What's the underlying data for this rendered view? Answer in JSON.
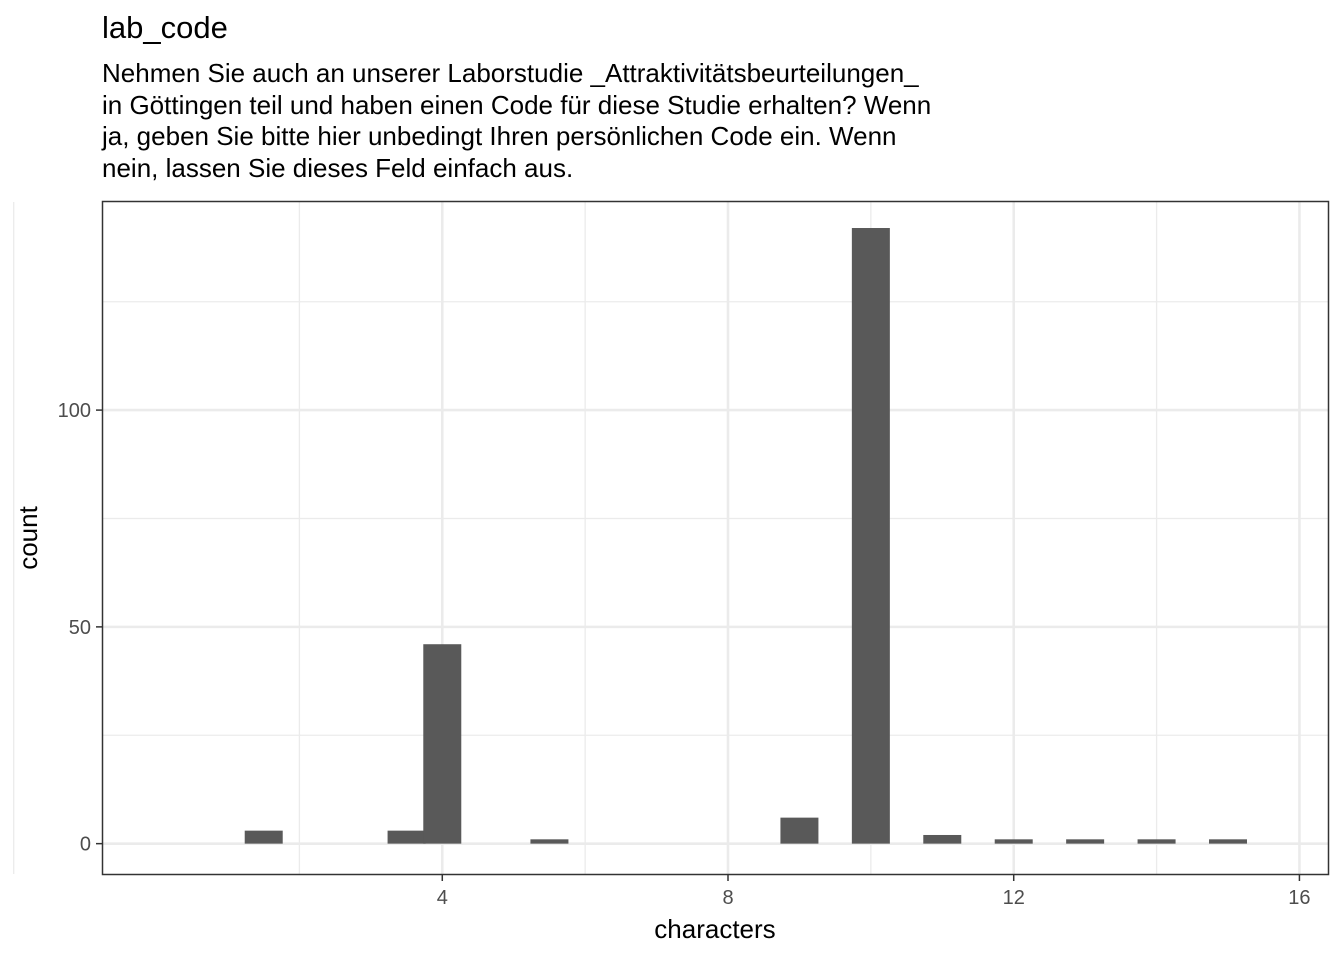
{
  "chart_data": {
    "type": "bar",
    "title": "lab_code",
    "subtitle_lines": [
      "Nehmen Sie auch an unserer Laborstudie _Attraktivitätsbeurteilungen_",
      "in Göttingen teil und haben einen Code für diese Studie erhalten? Wenn",
      "ja, geben Sie bitte hier unbedingt Ihren persönlichen Code ein. Wenn",
      "nein, lassen Sie dieses Feld einfach aus."
    ],
    "xlabel": "characters",
    "ylabel": "count",
    "x": [
      1.5,
      3.5,
      4,
      5.5,
      9,
      10,
      11,
      12,
      13,
      14,
      15
    ],
    "values": [
      3,
      3,
      46,
      1,
      6,
      142,
      2,
      1,
      1,
      1,
      1
    ],
    "xlim": [
      -0.75,
      16.4
    ],
    "ylim": [
      -7,
      148
    ],
    "x_ticks": [
      4,
      8,
      12,
      16
    ],
    "y_ticks": [
      0,
      50,
      100
    ],
    "bar_color": "#595959",
    "grid": true
  }
}
